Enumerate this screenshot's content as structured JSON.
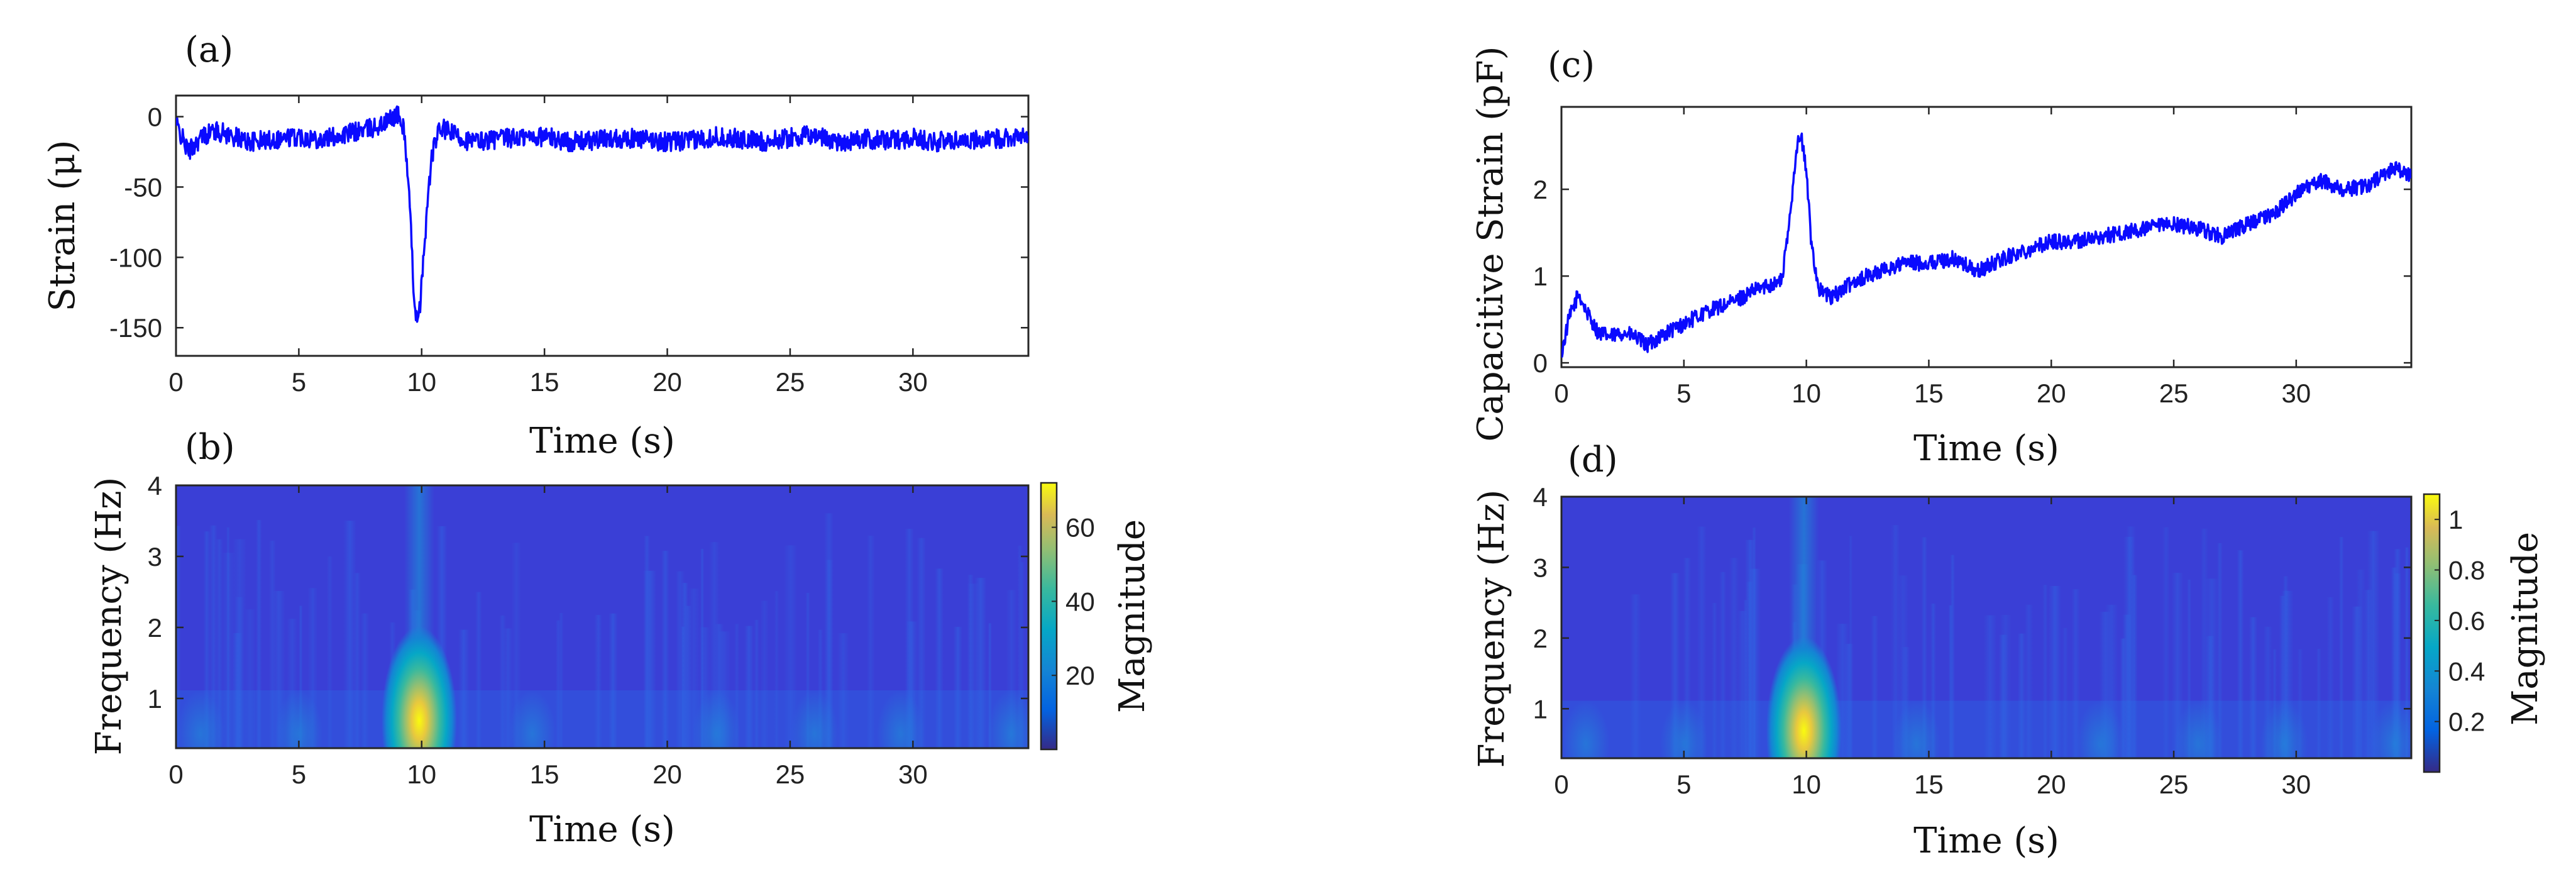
{
  "figure": {
    "panel_labels": [
      "(a)",
      "(b)",
      "(c)",
      "(d)"
    ]
  },
  "chart_data": [
    {
      "id": "a",
      "panel_label": "(a)",
      "type": "line",
      "title": "",
      "xlabel": "Time (s)",
      "ylabel": "Strain (μ)",
      "xlim": [
        0,
        34.7
      ],
      "ylim": [
        -170,
        15
      ],
      "xticks": [
        0,
        5,
        10,
        15,
        20,
        25,
        30
      ],
      "yticks": [
        0,
        -50,
        -100,
        -150
      ],
      "series": [
        {
          "name": "strain",
          "color": "#0a0aff",
          "x": [
            0,
            0.5,
            1,
            1.5,
            2,
            3,
            4,
            5,
            6,
            7,
            8,
            8.5,
            9,
            9.3,
            9.5,
            9.7,
            9.85,
            10,
            10.2,
            10.4,
            10.6,
            10.8,
            11,
            11.5,
            12,
            13,
            14,
            15,
            16,
            17,
            18,
            19,
            20,
            21,
            22,
            23,
            24,
            25,
            26,
            27,
            28,
            29,
            30,
            31,
            32,
            33,
            34,
            34.7
          ],
          "values": [
            -5,
            -25,
            -15,
            -10,
            -12,
            -18,
            -16,
            -14,
            -16,
            -12,
            -8,
            -5,
            2,
            -10,
            -60,
            -130,
            -150,
            -120,
            -70,
            -30,
            -15,
            -8,
            -10,
            -14,
            -18,
            -16,
            -15,
            -14,
            -18,
            -17,
            -15,
            -16,
            -18,
            -17,
            -14,
            -16,
            -18,
            -15,
            -13,
            -18,
            -16,
            -17,
            -15,
            -18,
            -16,
            -17,
            -14,
            -15
          ]
        }
      ]
    },
    {
      "id": "b",
      "panel_label": "(b)",
      "type": "heatmap",
      "title": "",
      "xlabel": "Time (s)",
      "ylabel": "Frequency (Hz)",
      "colorbar_label": "Magnitude",
      "xlim": [
        0,
        34.7
      ],
      "ylim": [
        0.3,
        4
      ],
      "xticks": [
        0,
        5,
        10,
        15,
        20,
        25,
        30
      ],
      "yticks": [
        1,
        2,
        3,
        4
      ],
      "color_range": [
        0,
        72
      ],
      "colorbar_ticks": [
        20,
        40,
        60
      ],
      "peak": {
        "time": 9.9,
        "frequency": 0.6,
        "magnitude": 70
      }
    },
    {
      "id": "c",
      "panel_label": "(c)",
      "type": "line",
      "title": "",
      "xlabel": "Time (s)",
      "ylabel": "Capacitive Strain (pF)",
      "xlim": [
        0,
        34.7
      ],
      "ylim": [
        -0.05,
        2.95
      ],
      "xticks": [
        0,
        5,
        10,
        15,
        20,
        25,
        30
      ],
      "yticks": [
        0,
        1,
        2
      ],
      "series": [
        {
          "name": "capacitive strain",
          "color": "#0a0aff",
          "x": [
            0,
            0.3,
            0.7,
            1,
            1.5,
            2,
            2.5,
            3,
            3.5,
            4,
            5,
            6,
            7,
            8,
            8.5,
            9,
            9.3,
            9.6,
            9.8,
            10,
            10.2,
            10.5,
            11,
            12,
            13,
            14,
            15,
            16,
            17,
            18,
            19,
            20,
            21,
            22,
            23,
            24,
            25,
            26,
            27,
            28,
            29,
            30,
            31,
            32,
            33,
            34,
            34.7
          ],
          "values": [
            0.1,
            0.5,
            0.8,
            0.6,
            0.35,
            0.3,
            0.35,
            0.3,
            0.2,
            0.3,
            0.45,
            0.6,
            0.7,
            0.85,
            0.9,
            0.95,
            1.6,
            2.5,
            2.6,
            2.2,
            1.4,
            0.85,
            0.75,
            0.95,
            1.05,
            1.15,
            1.15,
            1.2,
            1.05,
            1.2,
            1.3,
            1.4,
            1.4,
            1.45,
            1.5,
            1.55,
            1.6,
            1.55,
            1.45,
            1.6,
            1.7,
            1.95,
            2.1,
            2.0,
            2.05,
            2.25,
            2.15
          ]
        }
      ]
    },
    {
      "id": "d",
      "panel_label": "(d)",
      "type": "heatmap",
      "title": "",
      "xlabel": "Time (s)",
      "ylabel": "Frequency (Hz)",
      "colorbar_label": "Magnitude",
      "xlim": [
        0,
        34.7
      ],
      "ylim": [
        0.3,
        4
      ],
      "xticks": [
        0,
        5,
        10,
        15,
        20,
        25,
        30
      ],
      "yticks": [
        1,
        2,
        3,
        4
      ],
      "color_range": [
        0,
        1.1
      ],
      "colorbar_ticks": [
        0.2,
        0.4,
        0.6,
        0.8,
        1
      ],
      "peak": {
        "time": 9.9,
        "frequency": 0.6,
        "magnitude": 1.05
      }
    }
  ]
}
